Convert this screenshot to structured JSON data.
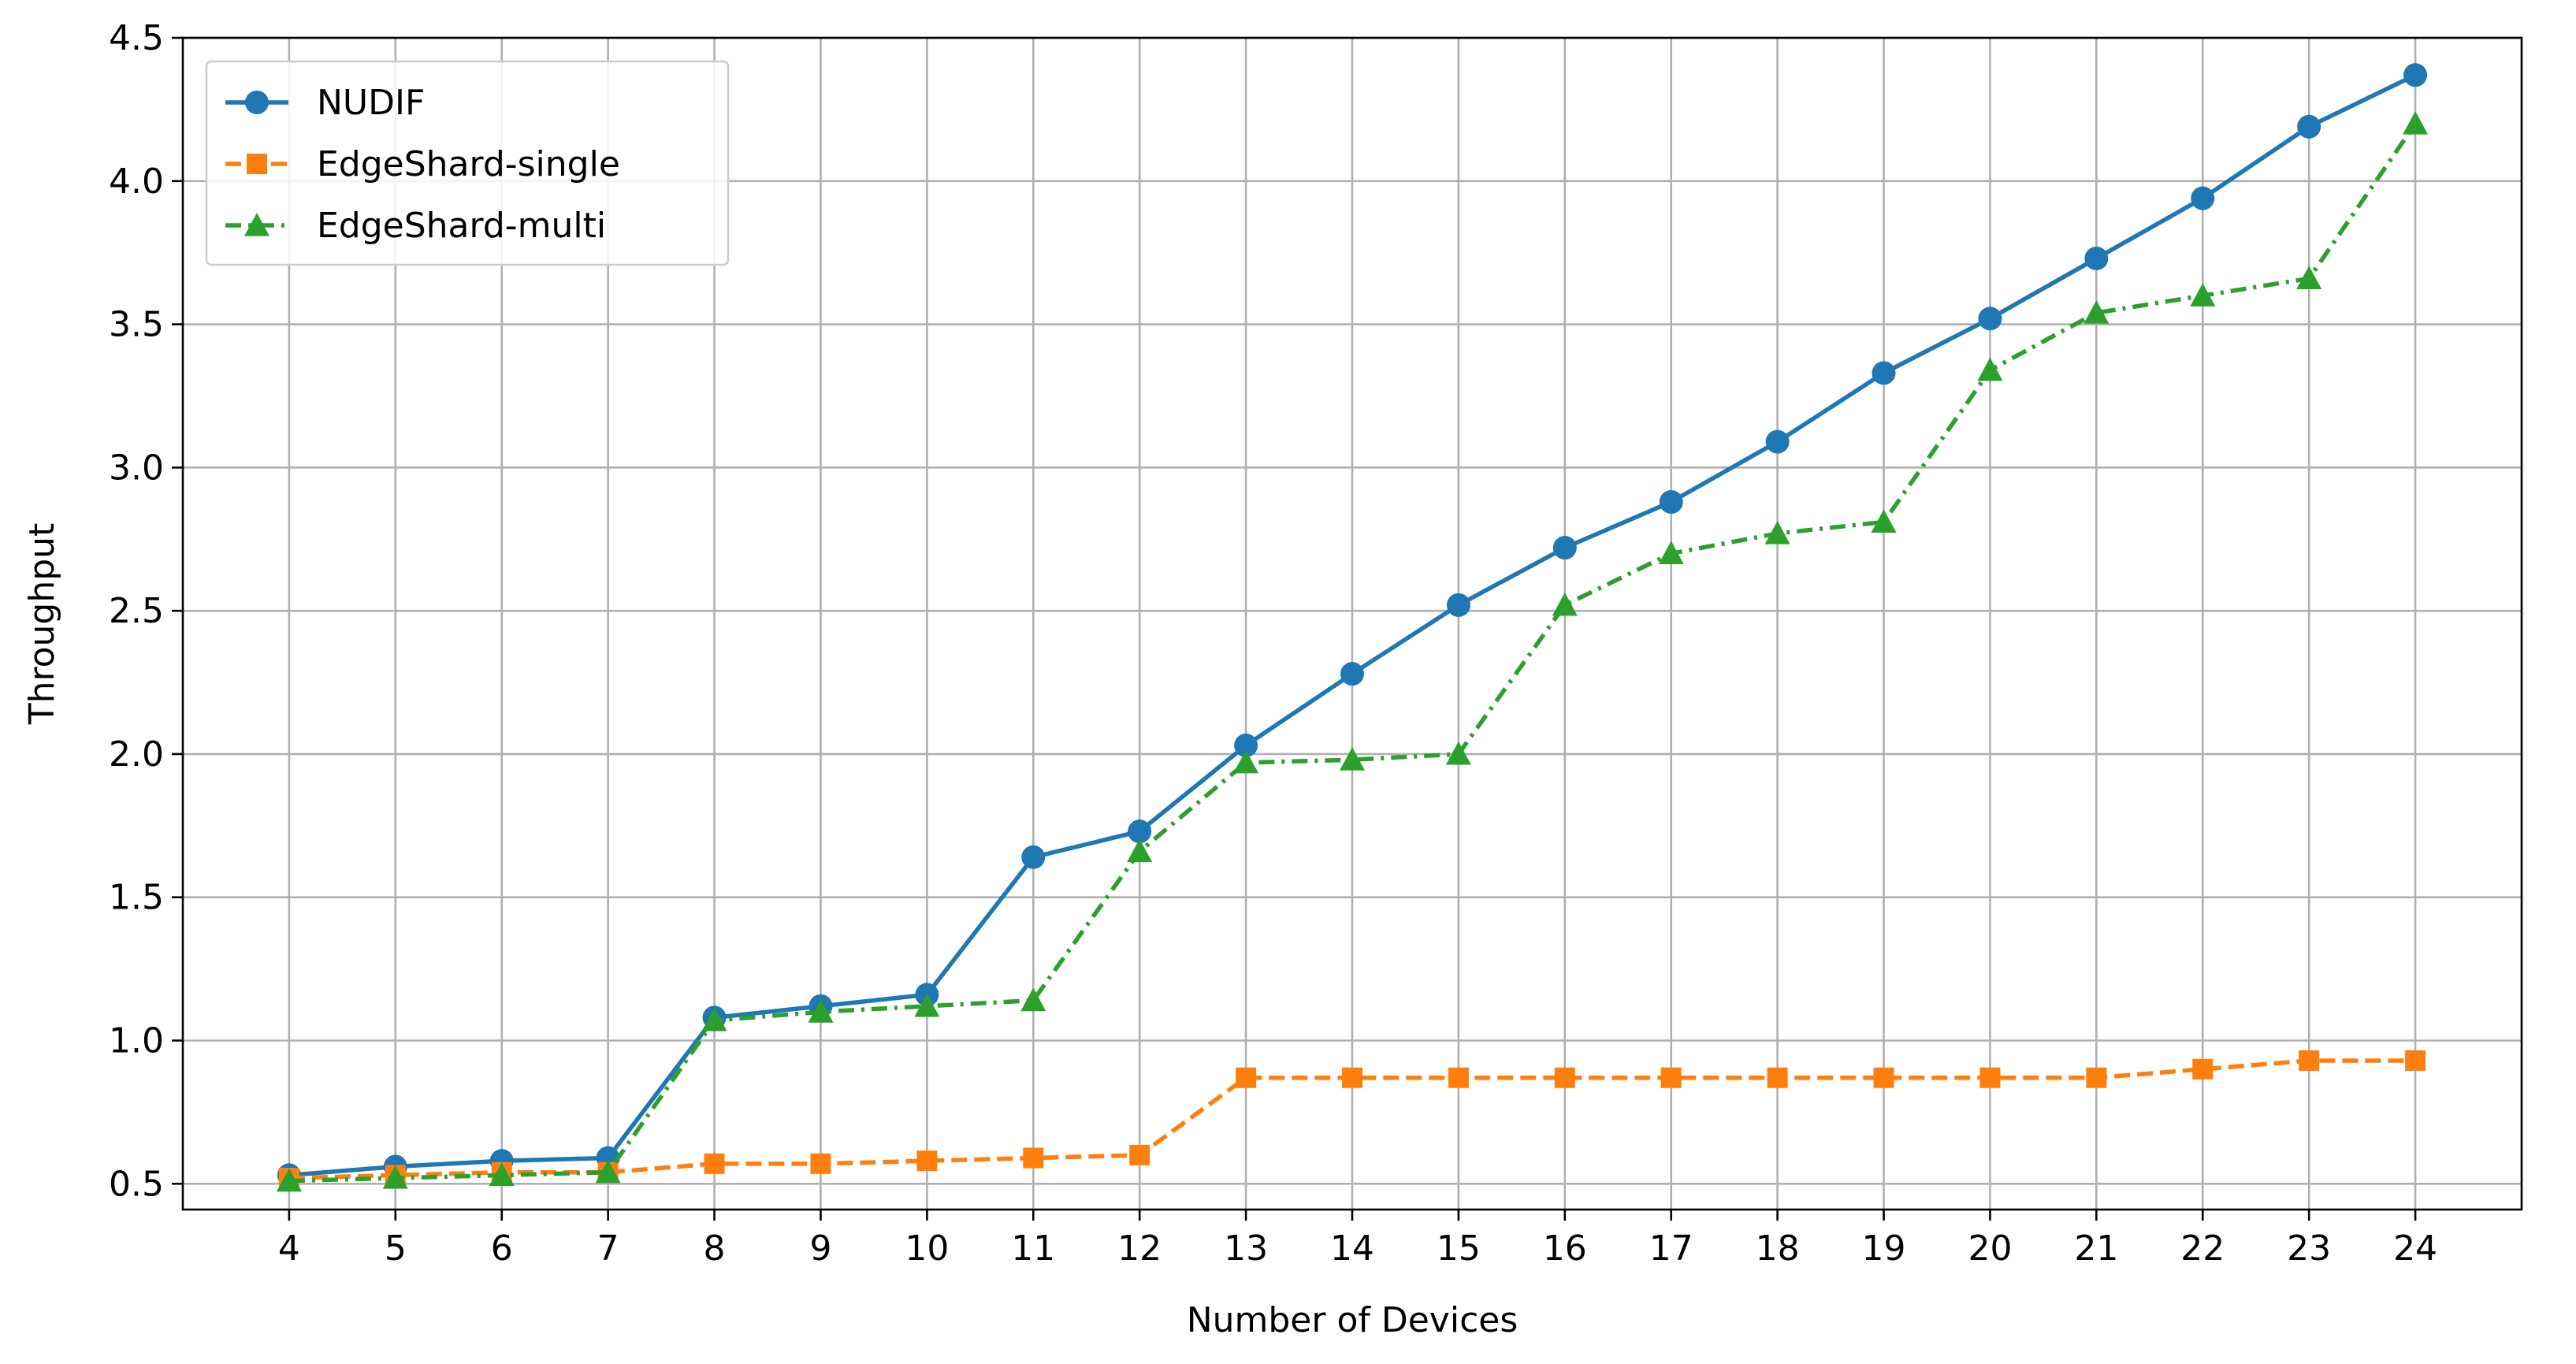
{
  "chart_data": {
    "type": "line",
    "xlabel": "Number of Devices",
    "ylabel": "Throughput",
    "x": [
      4,
      5,
      6,
      7,
      8,
      9,
      10,
      11,
      12,
      13,
      14,
      15,
      16,
      17,
      18,
      19,
      20,
      21,
      22,
      23,
      24
    ],
    "x_ticks": [
      "4",
      "5",
      "6",
      "7",
      "8",
      "9",
      "10",
      "11",
      "12",
      "13",
      "14",
      "15",
      "16",
      "17",
      "18",
      "19",
      "20",
      "21",
      "22",
      "23",
      "24"
    ],
    "y_ticks": [
      "0.5",
      "1.0",
      "1.5",
      "2.0",
      "2.5",
      "3.0",
      "3.5",
      "4.0",
      "4.5"
    ],
    "xlim": [
      3,
      25
    ],
    "ylim": [
      0.41,
      4.5
    ],
    "grid": true,
    "legend_position": "top-left",
    "series": [
      {
        "name": "NUDIF",
        "color": "#1f77b4",
        "line_style": "solid",
        "marker": "circle",
        "values": [
          0.53,
          0.56,
          0.58,
          0.59,
          1.08,
          1.12,
          1.16,
          1.64,
          1.73,
          2.03,
          2.28,
          2.52,
          2.72,
          2.88,
          3.09,
          3.33,
          3.52,
          3.73,
          3.94,
          4.19,
          4.37
        ]
      },
      {
        "name": "EdgeShard-single",
        "color": "#ff7f0e",
        "line_style": "dashed",
        "marker": "square",
        "values": [
          0.52,
          0.53,
          0.54,
          0.54,
          0.57,
          0.57,
          0.58,
          0.59,
          0.6,
          0.87,
          0.87,
          0.87,
          0.87,
          0.87,
          0.87,
          0.87,
          0.87,
          0.87,
          0.9,
          0.93,
          0.93
        ]
      },
      {
        "name": "EdgeShard-multi",
        "color": "#2ca02c",
        "line_style": "dash-dot",
        "marker": "triangle",
        "values": [
          0.51,
          0.52,
          0.53,
          0.54,
          1.07,
          1.1,
          1.12,
          1.14,
          1.66,
          1.97,
          1.98,
          2.0,
          2.52,
          2.7,
          2.77,
          2.81,
          3.34,
          3.54,
          3.6,
          3.66,
          4.2
        ]
      }
    ]
  }
}
